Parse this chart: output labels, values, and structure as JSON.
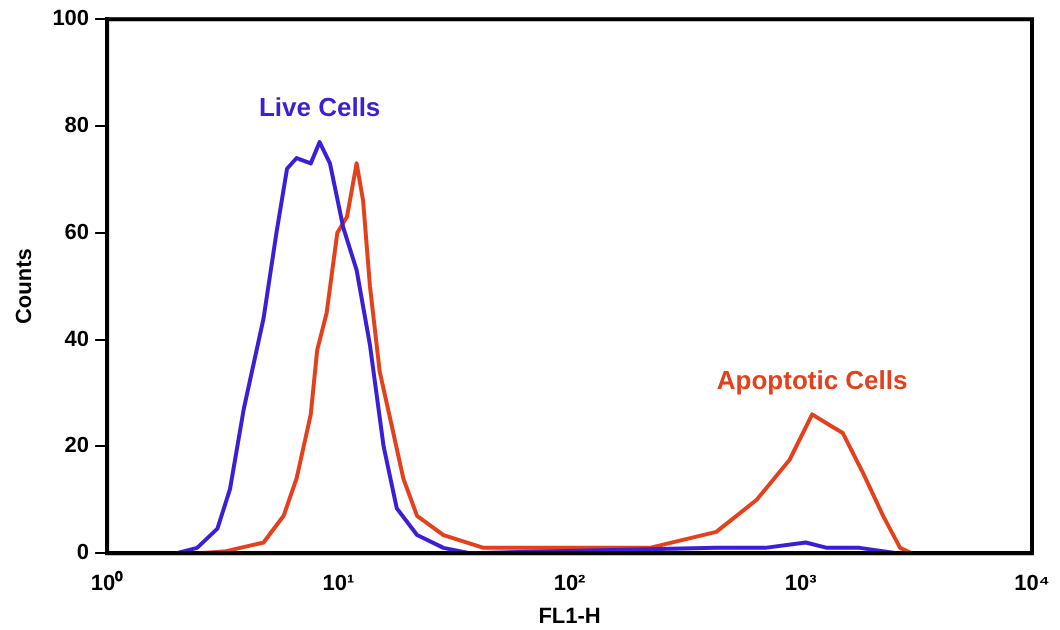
{
  "chart_data": {
    "type": "line",
    "xlabel": "FL1-H",
    "ylabel": "Counts",
    "log": "x",
    "xlim": [
      1,
      10000
    ],
    "xticks": [
      {
        "value": 1,
        "label": "10⁰"
      },
      {
        "value": 10,
        "label": "10¹"
      },
      {
        "value": 100,
        "label": "10²"
      },
      {
        "value": 1000,
        "label": "10³"
      },
      {
        "value": 10000,
        "label": "10⁴"
      }
    ],
    "ylim": [
      0,
      100
    ],
    "yticks": [
      0,
      20,
      40,
      60,
      80,
      100
    ],
    "grid": false,
    "legend": false,
    "marker": "none",
    "line_style": "solid",
    "series": [
      {
        "name": "Live Cells",
        "color": "#3b1fd6",
        "x": [
          2.0,
          2.45,
          3.0,
          3.4,
          3.9,
          4.75,
          5.4,
          6.0,
          6.6,
          7.6,
          8.3,
          9.2,
          10.5,
          12.0,
          13.7,
          15.7,
          17.9,
          21.9,
          28.5,
          37,
          431,
          700,
          1050,
          1300,
          1800,
          2600
        ],
        "values": [
          0,
          1,
          4.6,
          12,
          27,
          44,
          60,
          72,
          74,
          73,
          77,
          73,
          61,
          53,
          39,
          20,
          8.4,
          3.4,
          1,
          0,
          1,
          1,
          2,
          1,
          1,
          0
        ]
      },
      {
        "name": "Apoptotic Cells",
        "color": "#e3401b",
        "x": [
          2.5,
          3.2,
          4.75,
          5.8,
          6.6,
          7.6,
          8.1,
          8.9,
          9.9,
          10.9,
          12.0,
          12.8,
          13.7,
          15.1,
          16.8,
          19.1,
          21.9,
          28.5,
          42.5,
          100,
          222,
          431,
          645,
          895,
          1120,
          1330,
          1520,
          1860,
          2270,
          2690,
          3020
        ],
        "values": [
          0,
          0.3,
          2,
          7,
          14,
          26,
          38,
          45,
          60,
          63,
          73,
          66,
          50,
          34,
          25,
          14,
          7,
          3.4,
          1,
          1,
          1,
          4,
          10,
          17.5,
          26,
          24,
          22.5,
          15,
          7,
          1,
          0
        ]
      }
    ]
  }
}
